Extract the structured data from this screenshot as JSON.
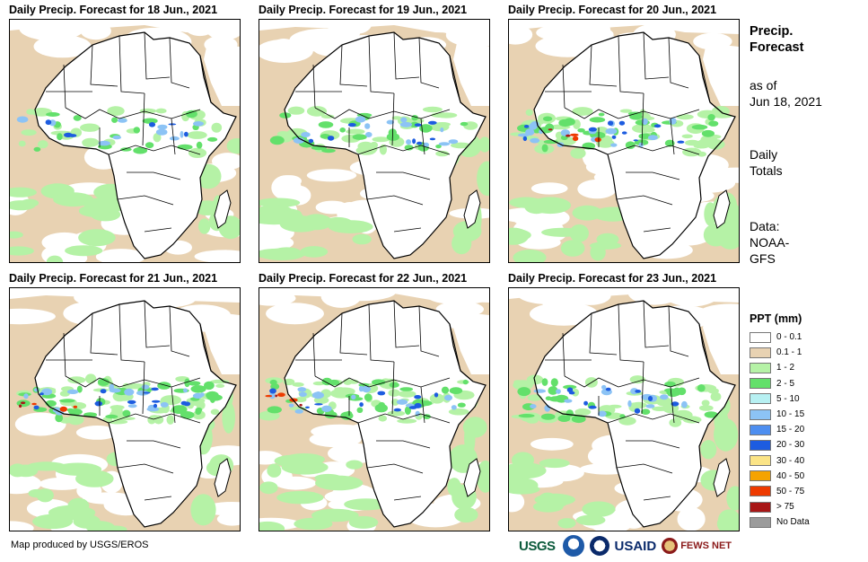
{
  "panels": [
    {
      "title": "Daily Precip. Forecast for 18 Jun., 2021"
    },
    {
      "title": "Daily Precip. Forecast for 19 Jun., 2021"
    },
    {
      "title": "Daily Precip. Forecast for 20 Jun., 2021"
    },
    {
      "title": "Daily Precip. Forecast for 21 Jun., 2021"
    },
    {
      "title": "Daily Precip. Forecast for 22 Jun., 2021"
    },
    {
      "title": "Daily Precip. Forecast for 23 Jun., 2021"
    }
  ],
  "side": {
    "heading_line1": "Precip.",
    "heading_line2": "Forecast",
    "asof_line1": "as of",
    "asof_line2": "Jun 18, 2021",
    "totals_line1": "Daily",
    "totals_line2": "Totals",
    "data_line1": "Data:",
    "data_line2": "NOAA-",
    "data_line3": "GFS"
  },
  "legend": {
    "title": "PPT (mm)",
    "items": [
      {
        "label": "0 - 0.1",
        "color": "#ffffff"
      },
      {
        "label": "0.1 - 1",
        "color": "#e8d2b2"
      },
      {
        "label": "1 - 2",
        "color": "#b5f2a6"
      },
      {
        "label": "2 - 5",
        "color": "#63e06b"
      },
      {
        "label": "5 - 10",
        "color": "#b7f0f2"
      },
      {
        "label": "10 - 15",
        "color": "#8cc3f5"
      },
      {
        "label": "15 - 20",
        "color": "#4d8ef0"
      },
      {
        "label": "20 - 30",
        "color": "#1d5ce0"
      },
      {
        "label": "30 - 40",
        "color": "#fbe486"
      },
      {
        "label": "40 - 50",
        "color": "#f5a300"
      },
      {
        "label": "50 - 75",
        "color": "#ee3a00"
      },
      {
        "label": "> 75",
        "color": "#a81616"
      },
      {
        "label": "No Data",
        "color": "#9b9b9b"
      }
    ]
  },
  "credit": "Map produced by USGS/EROS",
  "logos": {
    "usgs": "USGS",
    "usaid": "USAID",
    "fews": "FEWS NET"
  }
}
